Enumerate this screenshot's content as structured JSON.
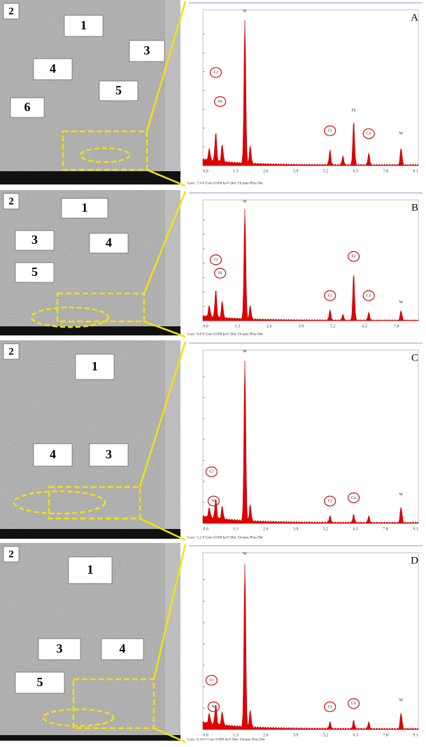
{
  "panels": [
    {
      "letter": "A",
      "labels": [
        "2",
        "1",
        "3",
        "4",
        "5",
        "6"
      ],
      "elements": [
        "W",
        "Cr",
        "Ni",
        "Cr",
        "Fe",
        "Co",
        "W"
      ],
      "x_ticks": [
        "0.0",
        "1.3",
        "2.6",
        "3.9",
        "5.2",
        "6.5",
        "7.8",
        "9.1"
      ],
      "footer": "Lsec: 7.4 0 Cnts 0.000 keV Det: Octane Plus Det"
    },
    {
      "letter": "B",
      "labels": [
        "2",
        "1",
        "3",
        "4",
        "5"
      ],
      "elements": [
        "W",
        "Cr",
        "Ni",
        "Cr",
        "Fe",
        "Co",
        "W"
      ],
      "x_ticks": [
        "0.0",
        "1.3",
        "2.6",
        "3.9",
        "5.2",
        "6.5",
        "7.8"
      ],
      "footer": "Lsec: 8.8 0 Cnts 0.000 keV Det: Octane Plus Det"
    },
    {
      "letter": "C",
      "labels": [
        "2",
        "1",
        "4",
        "3"
      ],
      "elements": [
        "W",
        "Cr",
        "Ni",
        "Cr",
        "Co",
        "W"
      ],
      "x_ticks": [
        "0.0",
        "1.3",
        "2.6",
        "3.9",
        "5.2",
        "6.5",
        "7.8",
        "9.1"
      ],
      "footer": "Lsec: 5.2 0 Cnts 0.000 keV Det: Octane Plus Det"
    },
    {
      "letter": "D",
      "labels": [
        "2",
        "1",
        "3",
        "4",
        "5"
      ],
      "elements": [
        "W",
        "Cr",
        "Ni",
        "Cr",
        "Co",
        "W"
      ],
      "x_ticks": [
        "0.0",
        "1.3",
        "2.6",
        "3.9",
        "5.2",
        "6.5",
        "7.8",
        "9.1"
      ],
      "footer": "Lsec: 6.34 0 Cnts 0.000 keV Det: Octane Plus Det"
    }
  ]
}
